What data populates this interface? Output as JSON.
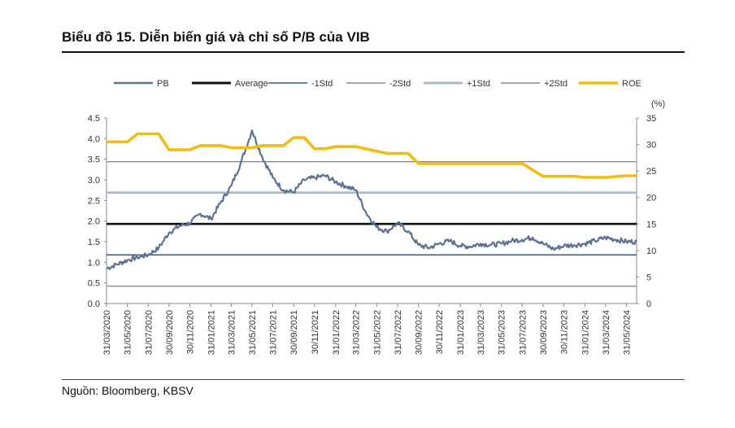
{
  "title": "Biểu đồ 15. Diễn biến giá và chỉ số P/B của VIB",
  "source": "Nguồn: Bloomberg, KBSV",
  "chart_data": {
    "type": "line",
    "legend": [
      "PB",
      "Average",
      "-1Std",
      "-2Std",
      "+1Std",
      "+2Std",
      "ROE"
    ],
    "legend_position": "top",
    "right_axis_unit": "(%)",
    "x_tick_labels": [
      "31/03/2020",
      "31/05/2020",
      "31/07/2020",
      "30/09/2020",
      "30/11/2020",
      "31/01/2021",
      "31/03/2021",
      "31/05/2021",
      "31/07/2021",
      "30/09/2021",
      "30/11/2021",
      "31/01/2022",
      "31/03/2022",
      "31/05/2022",
      "31/07/2022",
      "30/09/2022",
      "30/11/2022",
      "31/01/2023",
      "31/03/2023",
      "31/05/2023",
      "31/07/2023",
      "30/09/2023",
      "30/11/2023",
      "31/01/2024",
      "31/03/2024",
      "31/05/2024"
    ],
    "y_left": {
      "min": 0,
      "max": 4.5,
      "ticks": [
        "0.0",
        "0.5",
        "1.0",
        "1.5",
        "2.0",
        "2.5",
        "3.0",
        "3.5",
        "4.0",
        "4.5"
      ]
    },
    "y_right": {
      "min": 0,
      "max": 35,
      "ticks": [
        "0",
        "5",
        "10",
        "15",
        "20",
        "25",
        "30",
        "35"
      ]
    },
    "colors": {
      "PB": "#5b7294",
      "Average": "#111111",
      "-1Std": "#2e5a8a",
      "-2Std": "#8a8a8a",
      "+1Std": "#a7b8cf",
      "+2Std": "#8a8a8a",
      "ROE": "#f2bd11"
    },
    "reference_lines": {
      "Average": 1.93,
      "-1Std": 1.18,
      "-2Std": 0.42,
      "+1Std": 2.69,
      "+2Std": 3.44
    },
    "series": [
      {
        "name": "PB",
        "x": [
          "31/03/2020",
          "30/04/2020",
          "31/05/2020",
          "30/06/2020",
          "31/07/2020",
          "31/08/2020",
          "30/09/2020",
          "31/10/2020",
          "30/11/2020",
          "31/12/2020",
          "31/01/2021",
          "28/02/2021",
          "31/03/2021",
          "30/04/2021",
          "31/05/2021",
          "30/06/2021",
          "31/07/2021",
          "31/08/2021",
          "30/09/2021",
          "31/10/2021",
          "30/11/2021",
          "31/12/2021",
          "31/01/2022",
          "28/02/2022",
          "31/03/2022",
          "30/04/2022",
          "31/05/2022",
          "30/06/2022",
          "31/07/2022",
          "31/08/2022",
          "30/09/2022",
          "31/10/2022",
          "30/11/2022",
          "31/12/2022",
          "31/01/2023",
          "28/02/2023",
          "31/03/2023",
          "30/04/2023",
          "31/05/2023",
          "30/06/2023",
          "31/07/2023",
          "31/08/2023",
          "30/09/2023",
          "31/10/2023",
          "30/11/2023",
          "31/12/2023",
          "31/01/2024",
          "29/02/2024",
          "31/03/2024",
          "30/04/2024",
          "31/05/2024",
          "30/06/2024"
        ],
        "values": [
          0.85,
          0.95,
          1.05,
          1.12,
          1.18,
          1.35,
          1.72,
          1.88,
          1.95,
          2.18,
          2.05,
          2.45,
          2.85,
          3.45,
          4.2,
          3.55,
          3.05,
          2.75,
          2.7,
          3.0,
          3.05,
          3.1,
          2.95,
          2.85,
          2.75,
          2.2,
          1.85,
          1.75,
          1.95,
          1.75,
          1.42,
          1.35,
          1.45,
          1.52,
          1.4,
          1.38,
          1.45,
          1.42,
          1.45,
          1.52,
          1.55,
          1.6,
          1.45,
          1.32,
          1.4,
          1.42,
          1.45,
          1.52,
          1.6,
          1.55,
          1.5,
          1.5
        ]
      },
      {
        "name": "ROE",
        "x": [
          "31/03/2020",
          "31/05/2020",
          "30/06/2020",
          "31/08/2020",
          "30/09/2020",
          "30/11/2020",
          "31/12/2020",
          "28/02/2021",
          "31/03/2021",
          "31/05/2021",
          "30/06/2021",
          "31/08/2021",
          "30/09/2021",
          "31/10/2021",
          "30/11/2021",
          "31/12/2021",
          "31/01/2022",
          "31/03/2022",
          "30/06/2022",
          "31/08/2022",
          "30/09/2022",
          "30/11/2022",
          "31/03/2023",
          "31/05/2023",
          "30/06/2023",
          "31/07/2023",
          "30/09/2023",
          "31/10/2023",
          "30/11/2023",
          "31/12/2023",
          "31/01/2024",
          "31/03/2024",
          "31/05/2024",
          "30/06/2024"
        ],
        "values": [
          30.5,
          30.5,
          32,
          32,
          29,
          29,
          29.8,
          29.8,
          29.4,
          29.4,
          29.8,
          29.8,
          31.3,
          31.3,
          29.2,
          29.2,
          29.6,
          29.6,
          28.3,
          28.3,
          26.4,
          26.4,
          26.4,
          26.4,
          26.4,
          26.4,
          24,
          24,
          24,
          24,
          23.8,
          23.8,
          24.1,
          24.1
        ]
      }
    ]
  }
}
